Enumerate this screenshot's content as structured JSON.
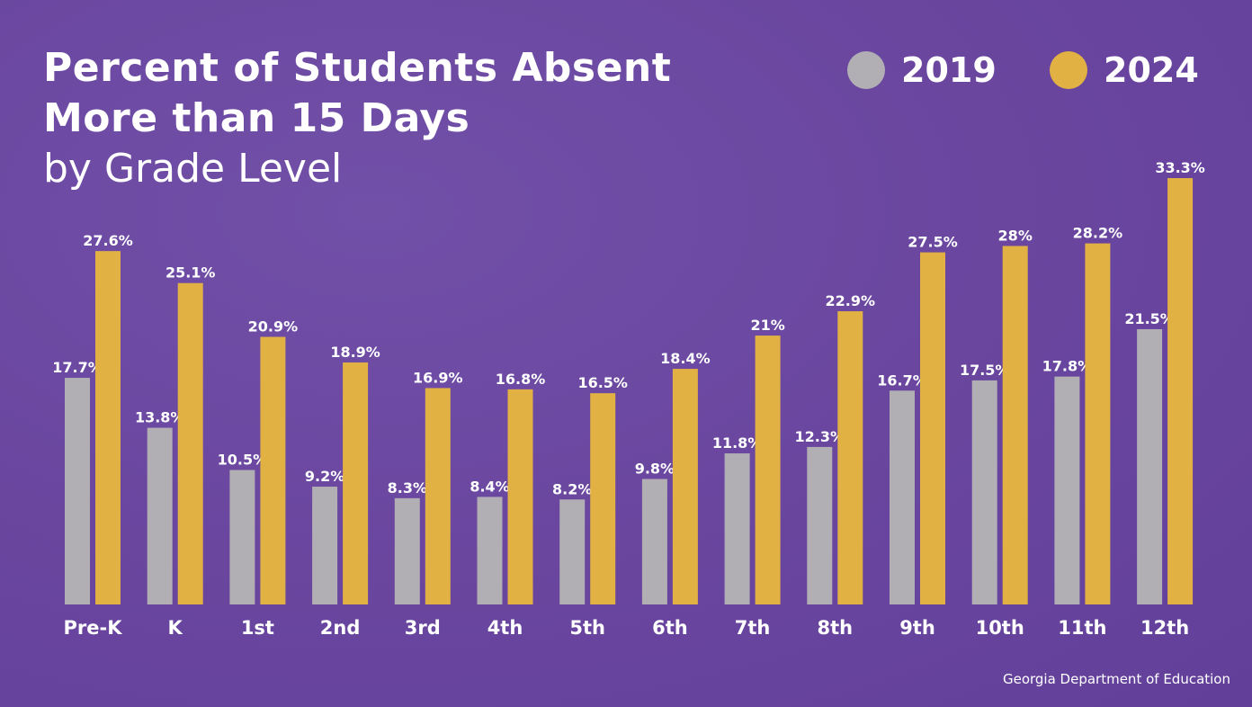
{
  "chart_data": {
    "type": "bar",
    "title": "Percent of Students Absent More than 15 Days",
    "subtitle": "by Grade Level",
    "categories": [
      "Pre-K",
      "K",
      "1st",
      "2nd",
      "3rd",
      "4th",
      "5th",
      "6th",
      "7th",
      "8th",
      "9th",
      "10th",
      "11th",
      "12th"
    ],
    "series": [
      {
        "name": "2019",
        "color": "#b1afb4",
        "values": [
          17.7,
          13.8,
          10.5,
          9.2,
          8.3,
          8.4,
          8.2,
          9.8,
          11.8,
          12.3,
          16.7,
          17.5,
          17.8,
          21.5
        ],
        "labels": [
          "17.7%",
          "13.8%",
          "10.5%",
          "9.2%",
          "8.3%",
          "8.4%",
          "8.2%",
          "9.8%",
          "11.8%",
          "12.3%",
          "16.7%",
          "17.5%",
          "17.8%",
          "21.5%"
        ]
      },
      {
        "name": "2024",
        "color": "#e2b144",
        "values": [
          27.6,
          25.1,
          20.9,
          18.9,
          16.9,
          16.8,
          16.5,
          18.4,
          21,
          22.9,
          27.5,
          28,
          28.2,
          33.3
        ],
        "labels": [
          "27.6%",
          "25.1%",
          "20.9%",
          "18.9%",
          "16.9%",
          "16.8%",
          "16.5%",
          "18.4%",
          "21%",
          "22.9%",
          "27.5%",
          "28%",
          "28.2%",
          "33.3%"
        ]
      }
    ],
    "ylim": [
      0,
      33.3
    ],
    "grid": false,
    "legend": "top-right",
    "source": "Georgia Department of Education"
  }
}
